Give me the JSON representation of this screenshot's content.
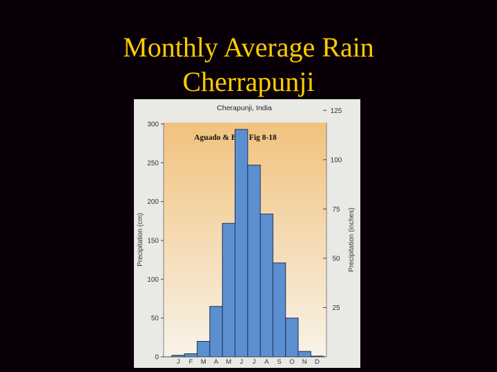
{
  "slide": {
    "title_line1": "Monthly Average Rain",
    "title_line2": "Cherrapunji"
  },
  "colors": {
    "slide_background": "#080006",
    "title": "#ffcc00",
    "bar_fill": "#5b8fd0",
    "bar_stroke": "#1f2f55",
    "panel_background": "#e9e9e6",
    "plot_gradient_top": "#f2c27e",
    "plot_gradient_bottom": "#f8f3e8"
  },
  "chart_data": {
    "type": "bar",
    "title": "Cherapunji, India",
    "annotation": "Aguado & Burt Fig 8-18",
    "categories": [
      "J",
      "F",
      "M",
      "A",
      "M",
      "J",
      "J",
      "A",
      "S",
      "O",
      "N",
      "D"
    ],
    "values": [
      2,
      4,
      20,
      65,
      172,
      293,
      247,
      184,
      121,
      50,
      7,
      1
    ],
    "ylabel_left": "Precipitation (cm)",
    "ylabel_right": "Precipitation (inches)",
    "ylim_left": [
      0,
      300
    ],
    "yticks_left": [
      0,
      50,
      100,
      150,
      200,
      250,
      300
    ],
    "ylim_right": [
      0,
      118.1
    ],
    "yticks_right": [
      25,
      50,
      75,
      100,
      125
    ],
    "xlabel": "",
    "grid": false,
    "legend": "none"
  }
}
